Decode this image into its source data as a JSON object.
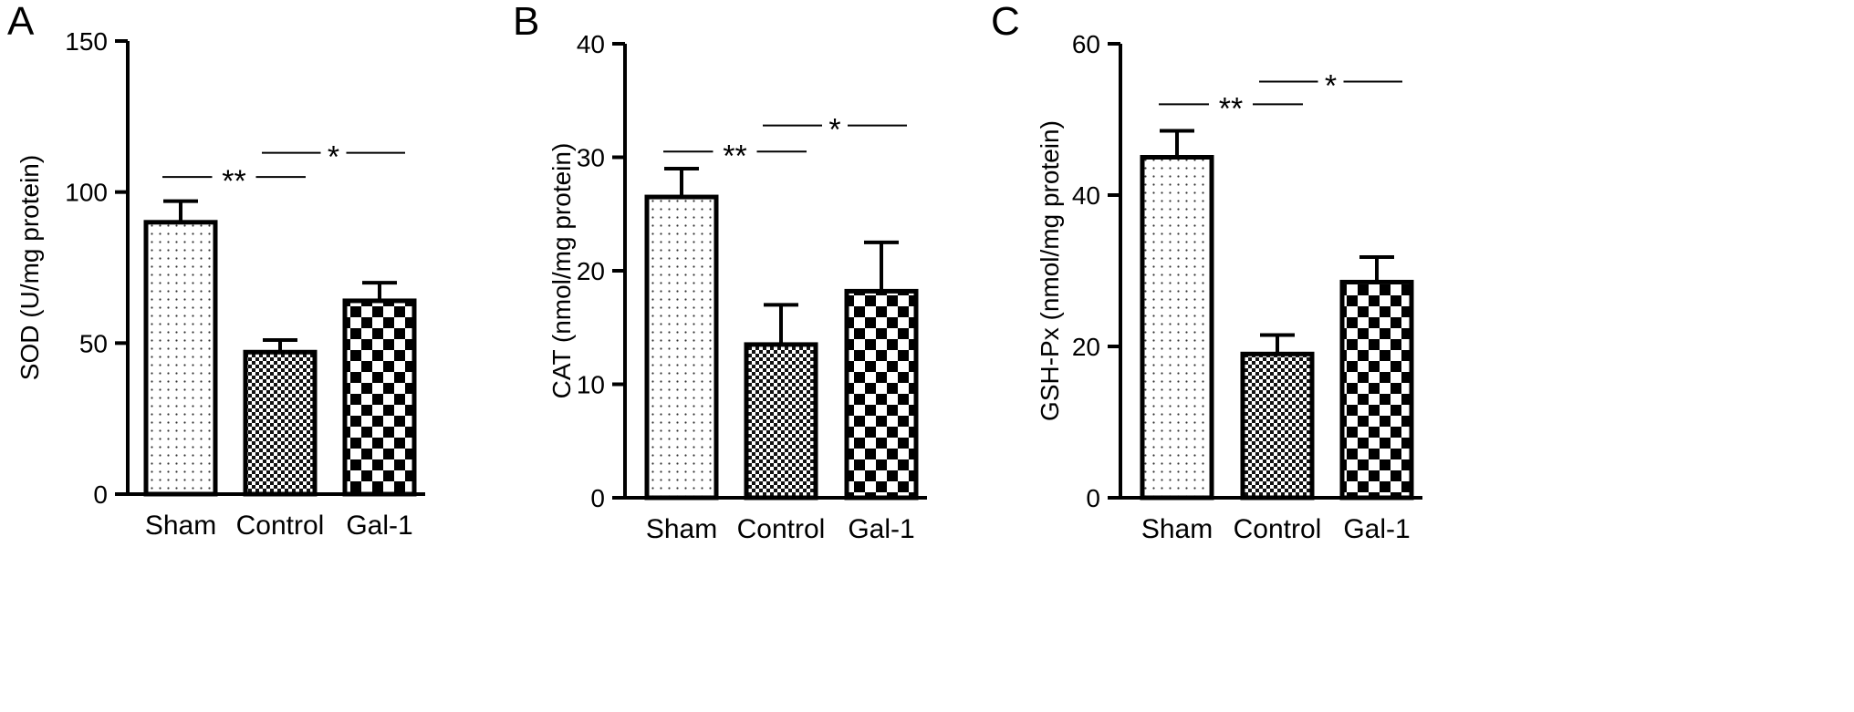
{
  "chart_data": [
    {
      "panel": "A",
      "type": "bar",
      "categories": [
        "Sham",
        "Control",
        "Gal-1"
      ],
      "values": [
        90,
        47,
        64
      ],
      "errors": [
        7,
        4,
        6
      ],
      "ylabel": "SOD (U/mg protein)",
      "ylim": [
        0,
        150
      ],
      "yticks": [
        "0",
        "50",
        "100",
        "150"
      ],
      "grid": false,
      "legend": "none",
      "patterns": [
        "dots",
        "fine-check",
        "checker"
      ],
      "significance": [
        {
          "from": 0,
          "to": 1,
          "label": "**",
          "y": 105
        },
        {
          "from": 1,
          "to": 2,
          "label": "*",
          "y": 113
        }
      ]
    },
    {
      "panel": "B",
      "type": "bar",
      "categories": [
        "Sham",
        "Control",
        "Gal-1"
      ],
      "values": [
        26.5,
        13.5,
        18.2
      ],
      "errors": [
        2.5,
        3.5,
        4.3
      ],
      "ylabel": "CAT (nmol/mg protein)",
      "ylim": [
        0,
        40
      ],
      "yticks": [
        "0",
        "10",
        "20",
        "30",
        "40"
      ],
      "grid": false,
      "legend": "none",
      "patterns": [
        "dots",
        "fine-check",
        "checker"
      ],
      "significance": [
        {
          "from": 0,
          "to": 1,
          "label": "**",
          "y": 30.5
        },
        {
          "from": 1,
          "to": 2,
          "label": "*",
          "y": 32.8
        }
      ]
    },
    {
      "panel": "C",
      "type": "bar",
      "categories": [
        "Sham",
        "Control",
        "Gal-1"
      ],
      "values": [
        45,
        19,
        28.5
      ],
      "errors": [
        3.5,
        2.5,
        3.3
      ],
      "ylabel": "GSH-Px (nmol/mg protein)",
      "ylim": [
        0,
        60
      ],
      "yticks": [
        "0",
        "20",
        "40",
        "60"
      ],
      "grid": false,
      "legend": "none",
      "patterns": [
        "dots",
        "fine-check",
        "checker"
      ],
      "significance": [
        {
          "from": 0,
          "to": 1,
          "label": "**",
          "y": 52
        },
        {
          "from": 1,
          "to": 2,
          "label": "*",
          "y": 55
        }
      ]
    }
  ]
}
